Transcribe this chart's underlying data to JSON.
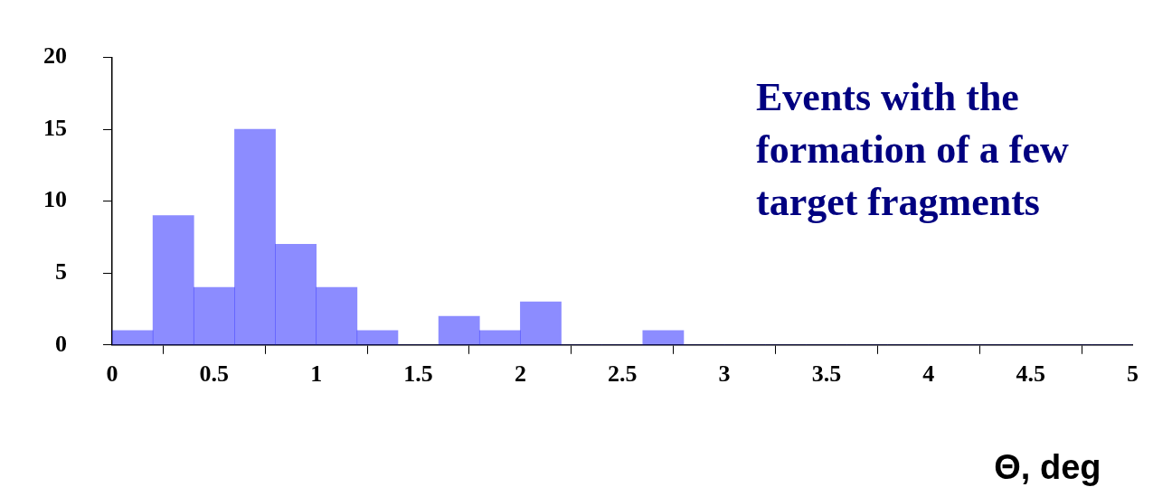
{
  "chart_data": {
    "type": "histogram",
    "xlabel": "Θ, deg",
    "bins": [
      0,
      0.2,
      0.4,
      0.6,
      0.8,
      1,
      1.2,
      1.4,
      1.6,
      1.8,
      2,
      2.2,
      2.4,
      2.6,
      2.8,
      3,
      3.2,
      3.4,
      3.6,
      3.8,
      4,
      4.2,
      4.4,
      4.6,
      4.8,
      5
    ],
    "values": [
      1,
      9,
      4,
      15,
      7,
      4,
      1,
      0,
      2,
      1,
      3,
      0,
      0,
      1,
      0,
      0,
      0,
      0,
      0,
      0,
      0,
      0,
      0,
      0,
      0
    ],
    "color": "#1a1aff",
    "xlim": [
      0,
      5
    ],
    "xticks": [
      0,
      0.5,
      1,
      1.5,
      2,
      2.5,
      3,
      3.5,
      4,
      4.5,
      5
    ],
    "ylim": [
      0,
      20
    ],
    "yticks": [
      0,
      5,
      10,
      15,
      20
    ],
    "grid": false,
    "annotations": [
      "Events with the formation of a few target fragments"
    ]
  }
}
